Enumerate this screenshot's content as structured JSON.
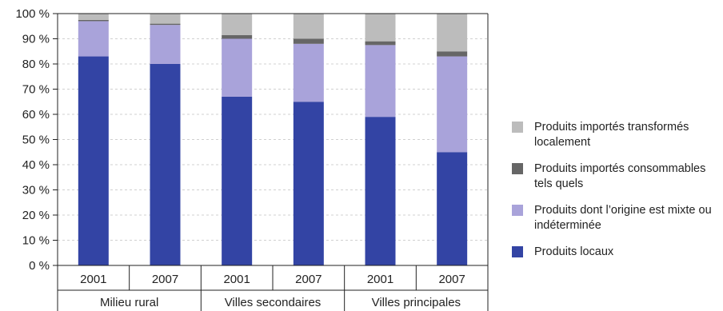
{
  "chart_data": {
    "type": "bar",
    "stacked": true,
    "groups": [
      "Milieu rural",
      "Villes secondaires",
      "Villes principales"
    ],
    "categories": [
      "2001",
      "2007",
      "2001",
      "2007",
      "2001",
      "2007"
    ],
    "y_ticks": [
      "0 %",
      "10 %",
      "20 %",
      "30 %",
      "40 %",
      "50 %",
      "60 %",
      "70 %",
      "80 %",
      "90 %",
      "100 %"
    ],
    "ylim": [
      0,
      100
    ],
    "grid": true,
    "legend_position": "right",
    "series": [
      {
        "name": "Produits locaux",
        "color": "#3344a4",
        "values": [
          83,
          80,
          67,
          65,
          59,
          45
        ]
      },
      {
        "name": "Produits dont l’origine est mixte ou indéterminée",
        "color": "#a9a3da",
        "values": [
          14,
          15.5,
          23,
          23,
          28.5,
          38
        ]
      },
      {
        "name": "Produits importés consommables tels quels",
        "color": "#666666",
        "values": [
          0.5,
          0.5,
          1.5,
          2,
          1.5,
          2
        ]
      },
      {
        "name": "Produits importés transformés localement",
        "color": "#bcbcbc",
        "values": [
          2.5,
          4,
          8.5,
          10,
          11,
          15
        ]
      }
    ]
  }
}
